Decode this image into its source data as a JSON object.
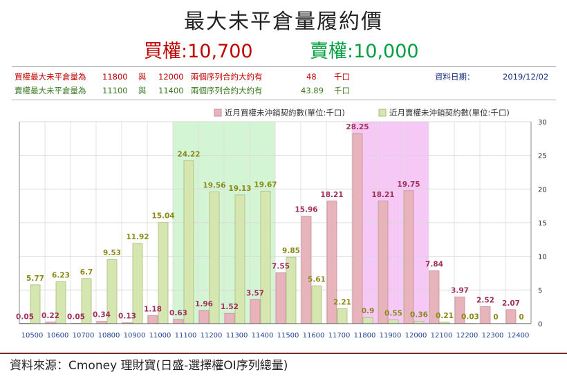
{
  "header": {
    "title": "最大未平倉量履約價",
    "buy_label": "買權:10,700",
    "sell_label": "賣權:10,000"
  },
  "info": {
    "row1": {
      "prefix": "買權最大未平倉量為",
      "v1": "11800",
      "mid": "與",
      "v2": "12000",
      "desc": "兩個序列合約大約有",
      "amount": "48",
      "unit": "千口",
      "date_label": "資料日期：",
      "date": "2019/12/02"
    },
    "row2": {
      "prefix": "賣權最大未平倉量為",
      "v1": "11100",
      "mid": "與",
      "v2": "11400",
      "desc": "兩個序列合約大約有",
      "amount": "43.89",
      "unit": "千口"
    }
  },
  "footer": {
    "source": "資料來源：Cmoney 理財寶(日盛-選擇權OI序列總量)"
  },
  "chart_data": {
    "type": "bar",
    "categories": [
      "10500",
      "10600",
      "10700",
      "10800",
      "10900",
      "11000",
      "11100",
      "11200",
      "11300",
      "11400",
      "11500",
      "11600",
      "11700",
      "11800",
      "11900",
      "12000",
      "12100",
      "12200",
      "12300",
      "12400"
    ],
    "series": [
      {
        "name": "近月買權未沖銷契約數(單位:千口)",
        "color": "#e8b4bc",
        "label_color": "#a0305a",
        "values": [
          0.05,
          0.22,
          0.05,
          0.34,
          0.13,
          1.18,
          0.63,
          1.96,
          1.52,
          3.57,
          7.55,
          15.96,
          18.21,
          28.25,
          18.21,
          19.75,
          7.84,
          3.97,
          2.52,
          2.07
        ]
      },
      {
        "name": "近月賣權未沖銷契約數(單位:千口)",
        "color": "#d6e6b0",
        "label_color": "#8a8a1a",
        "values": [
          5.77,
          6.23,
          6.7,
          9.53,
          11.92,
          15.04,
          24.22,
          19.56,
          19.13,
          19.67,
          9.85,
          5.61,
          2.21,
          0.9,
          0.55,
          0.36,
          0.21,
          0.03,
          0,
          0
        ]
      }
    ],
    "yaxis": {
      "position": "right",
      "range": [
        0,
        30
      ],
      "ticks": [
        0,
        5,
        10,
        15,
        20,
        25,
        30
      ]
    },
    "highlights": [
      {
        "from": "11100",
        "to": "11400",
        "color": "#d4f5d4"
      },
      {
        "from": "11800",
        "to": "12000",
        "color": "#f5c8f5"
      }
    ],
    "legend_position": "top-right",
    "grid": true
  }
}
